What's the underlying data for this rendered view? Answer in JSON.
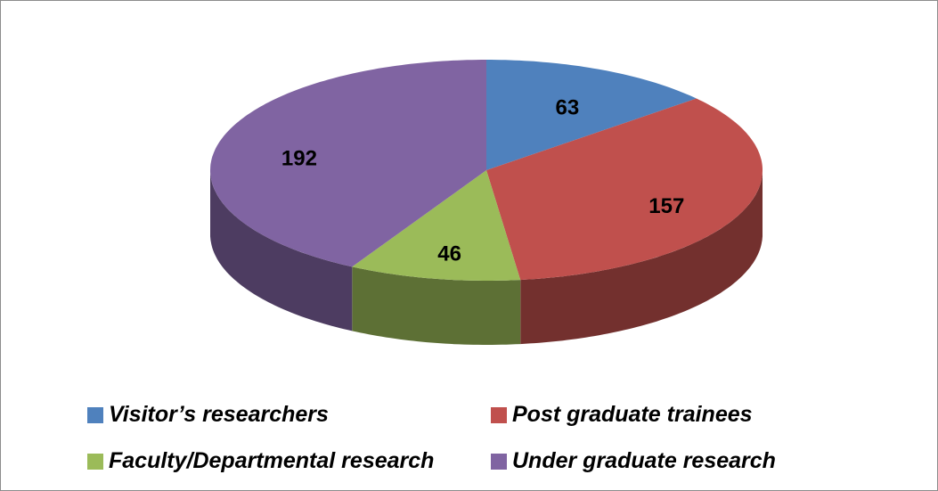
{
  "chart_data": {
    "type": "pie",
    "categories": [
      "Visitor’s researchers",
      "Post graduate trainees",
      "Faculty/Departmental research",
      "Under graduate research"
    ],
    "values": [
      63,
      157,
      46,
      192
    ],
    "colors": [
      "#4f81bd",
      "#c0504d",
      "#9bbb59",
      "#8064a2"
    ]
  }
}
